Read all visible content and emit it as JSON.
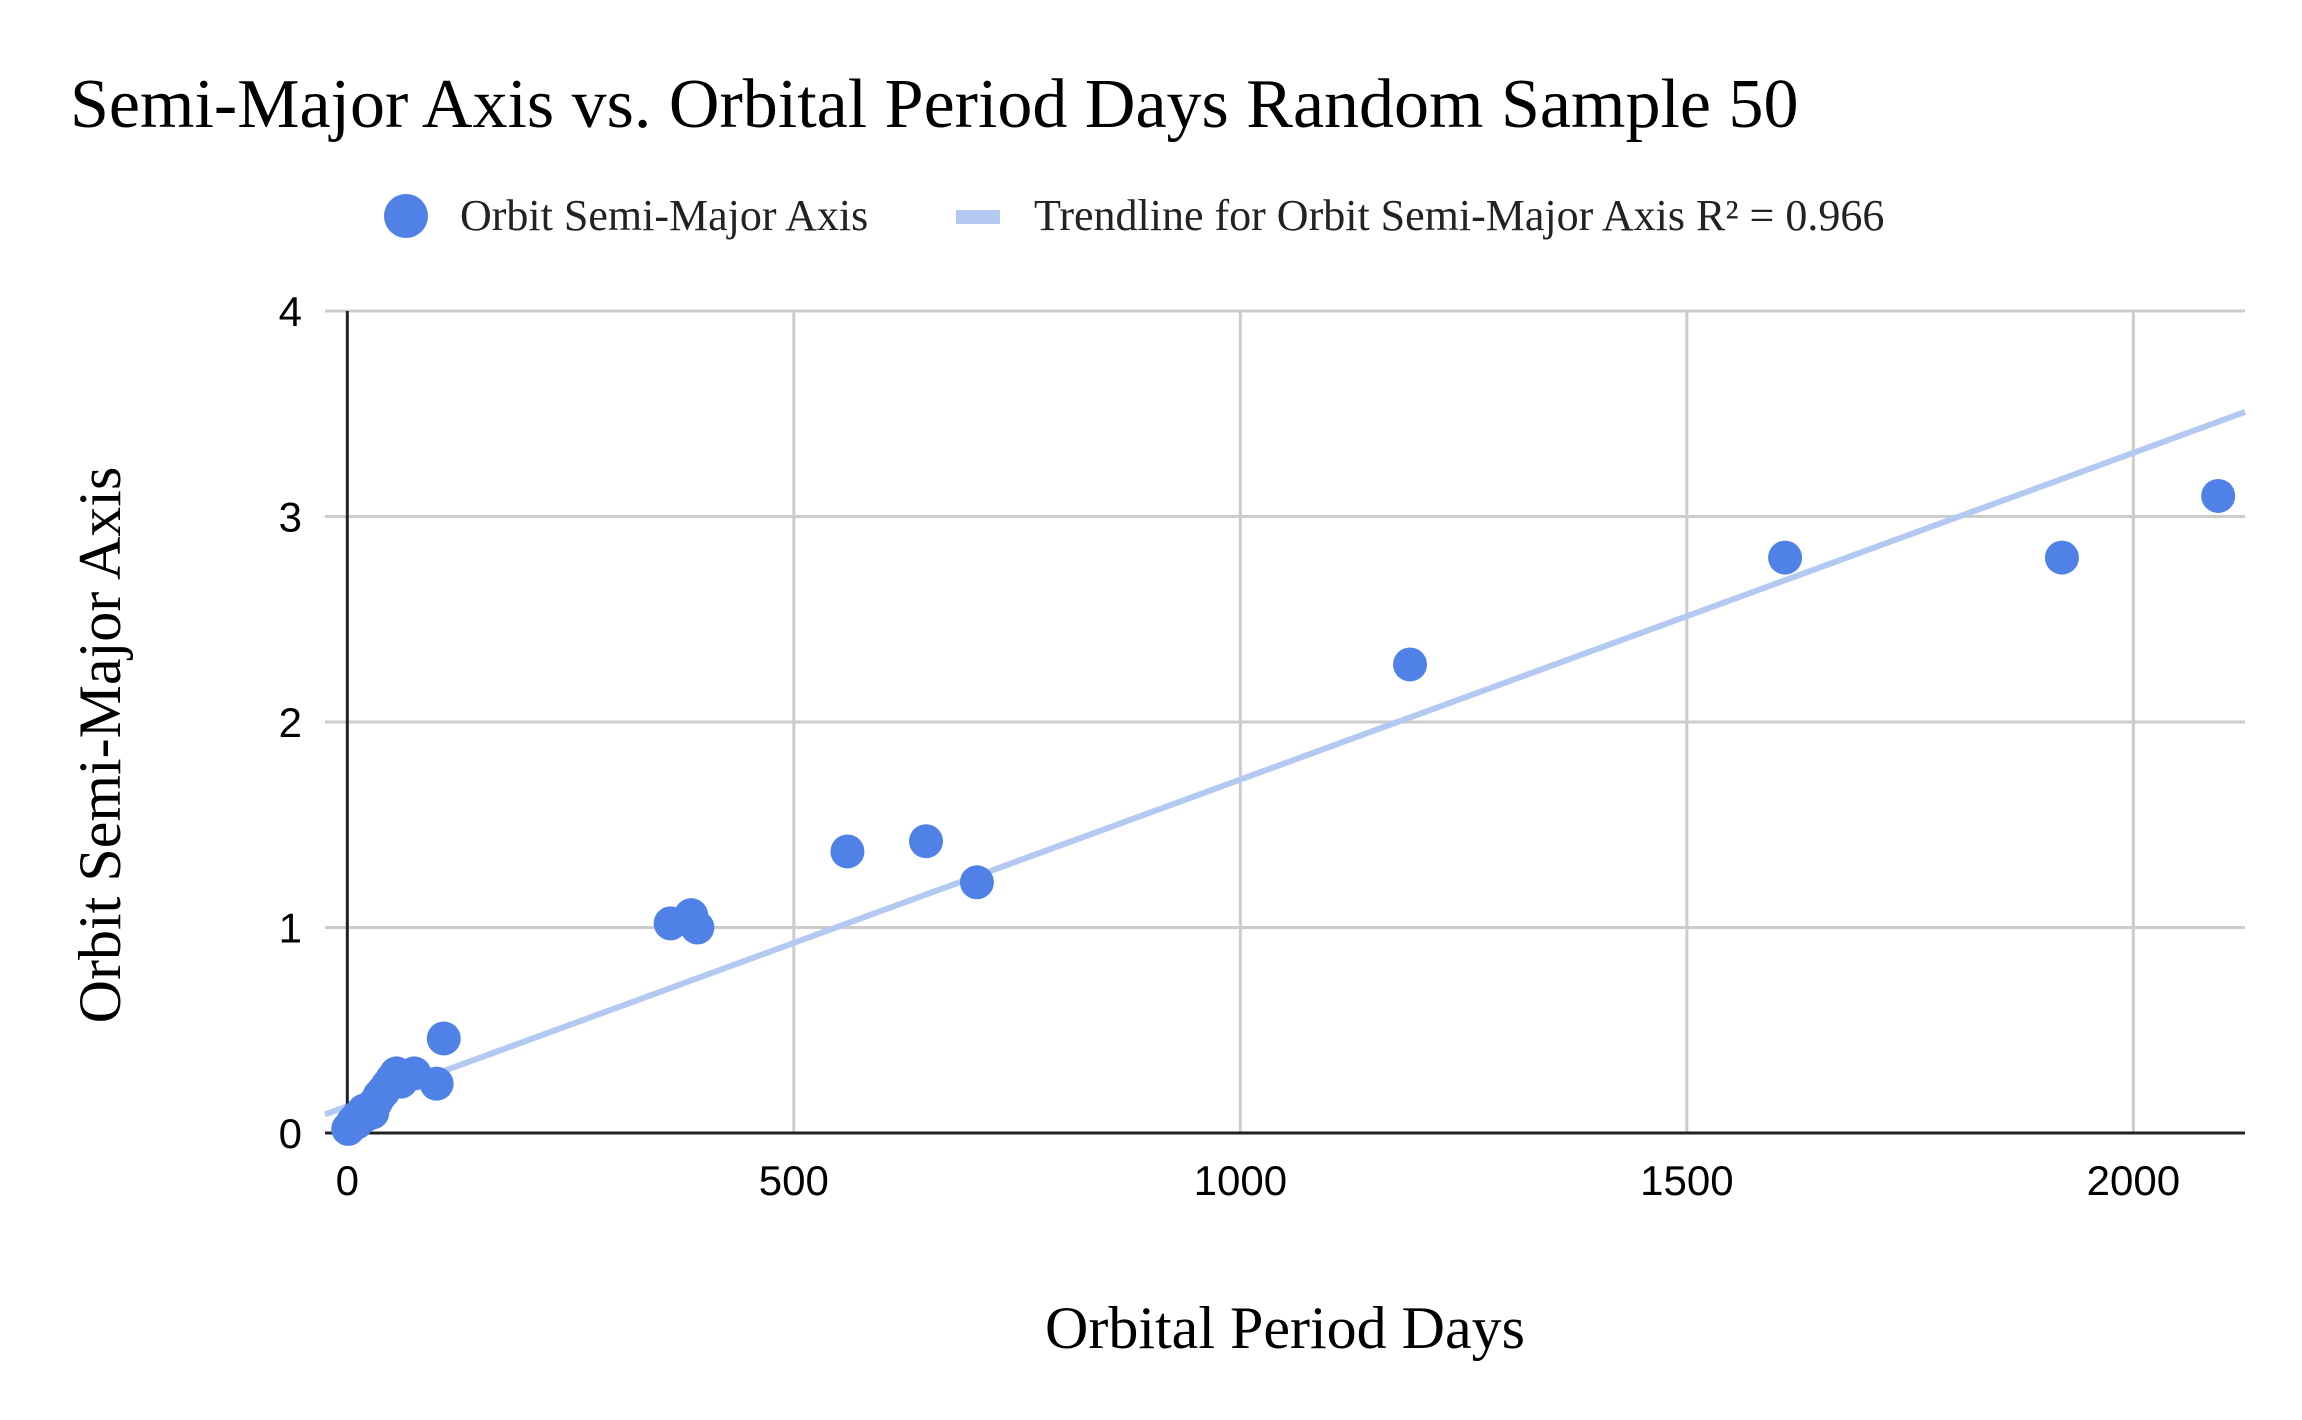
{
  "chart_data": {
    "type": "scatter",
    "title": "Semi-Major Axis vs. Orbital Period Days Random Sample 50",
    "xlabel": "Orbital Period Days",
    "ylabel": "Orbit Semi-Major Axis",
    "xlim": [
      -25,
      2125
    ],
    "ylim": [
      0,
      4
    ],
    "x_ticks": [
      0,
      500,
      1000,
      1500,
      2000
    ],
    "y_ticks": [
      0,
      1,
      2,
      3,
      4
    ],
    "x_tick_labels": [
      "0",
      "500",
      "1000",
      "1500",
      "2000"
    ],
    "y_tick_labels": [
      "0",
      "1",
      "2",
      "3",
      "4"
    ],
    "grid": true,
    "legend_position": "top",
    "series": [
      {
        "name": "Orbit Semi-Major Axis",
        "color": "#4f81e6",
        "x": [
          1,
          3,
          5,
          6,
          8,
          10,
          12,
          14,
          17,
          19,
          22,
          25,
          28,
          32,
          36,
          40,
          45,
          50,
          55,
          60,
          75,
          100,
          108,
          362,
          385,
          392,
          560,
          648,
          705,
          1190,
          1610,
          1920,
          2095
        ],
        "y": [
          0.02,
          0.03,
          0.04,
          0.05,
          0.06,
          0.05,
          0.08,
          0.07,
          0.1,
          0.11,
          0.09,
          0.12,
          0.1,
          0.15,
          0.18,
          0.2,
          0.23,
          0.26,
          0.29,
          0.25,
          0.29,
          0.24,
          0.46,
          1.02,
          1.06,
          1.0,
          1.37,
          1.42,
          1.22,
          2.28,
          2.8,
          2.8,
          3.1
        ]
      }
    ],
    "trendline": {
      "name": "Trendline for Orbit Semi-Major Axis R² = 0.966",
      "color": "#b4c9f1",
      "slope": 0.00159,
      "intercept": 0.13,
      "x_range": [
        -25,
        2125
      ]
    }
  }
}
